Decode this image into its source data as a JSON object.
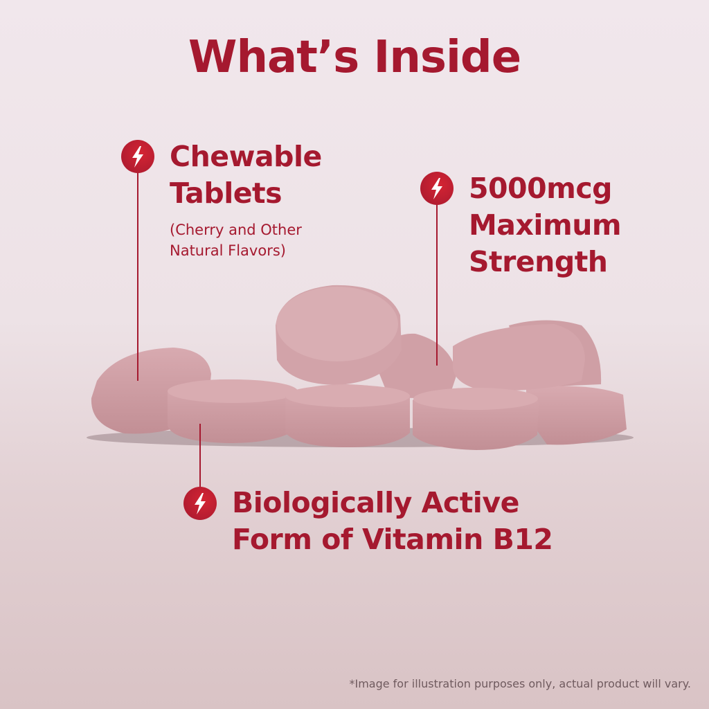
{
  "title": "What’s Inside",
  "callouts": [
    {
      "icon": "lightning-bolt-icon",
      "lines": [
        "Chewable",
        "Tablets"
      ],
      "sub": [
        "(Cherry and Other",
        "Natural Flavors)"
      ]
    },
    {
      "icon": "lightning-bolt-icon",
      "lines": [
        "5000mcg",
        "Maximum",
        "Strength"
      ]
    },
    {
      "icon": "lightning-bolt-icon",
      "lines": [
        "Biologically Active",
        "Form of Vitamin B12"
      ]
    }
  ],
  "disclaimer": "*Image for illustration purposes only, actual product will vary.",
  "colors": {
    "accent": "#a5192f",
    "tablet": "#d3a4a8",
    "background_top": "#f1e7ec",
    "background_bottom": "#d9c3c5"
  }
}
